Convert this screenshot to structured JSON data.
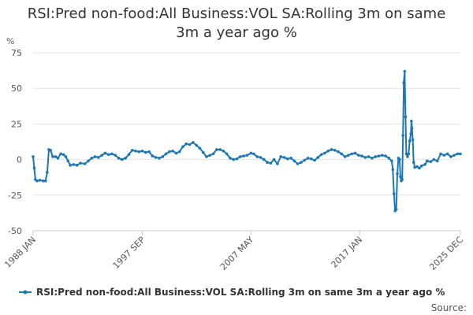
{
  "chart_data": {
    "type": "line",
    "title_lines": [
      "RSI:Pred non-food:All Business:VOL SA:Rolling 3m on same",
      "3m a year ago %"
    ],
    "ylabel": "%",
    "ylim": [
      -50,
      75
    ],
    "yticks": [
      75,
      50,
      25,
      0,
      -25,
      -50
    ],
    "xlim": [
      1988.0,
      2025.95
    ],
    "xticks": [
      {
        "label": "1988 JAN",
        "value": 1988.0
      },
      {
        "label": "1997 SEP",
        "value": 1997.7
      },
      {
        "label": "2007 MAY",
        "value": 2007.35
      },
      {
        "label": "2017 JAN",
        "value": 2017.0
      },
      {
        "label": "2025 DEC",
        "value": 2025.95
      }
    ],
    "grid": true,
    "legend_position": "bottom",
    "series": [
      {
        "name": "RSI:Pred non-food:All Business:VOL SA:Rolling 3m on same 3m a year ago %",
        "color": "#1c77b4",
        "points": [
          [
            1988.0,
            2
          ],
          [
            1988.1,
            -6
          ],
          [
            1988.2,
            -14
          ],
          [
            1988.35,
            -15
          ],
          [
            1988.6,
            -14.5
          ],
          [
            1988.9,
            -15
          ],
          [
            1989.1,
            -15
          ],
          [
            1989.25,
            -9
          ],
          [
            1989.4,
            7
          ],
          [
            1989.55,
            6.5
          ],
          [
            1989.75,
            2
          ],
          [
            1990.0,
            2
          ],
          [
            1990.2,
            1
          ],
          [
            1990.45,
            4
          ],
          [
            1990.7,
            3.5
          ],
          [
            1990.9,
            2
          ],
          [
            1991.1,
            -1
          ],
          [
            1991.3,
            -4
          ],
          [
            1991.6,
            -3.5
          ],
          [
            1991.9,
            -4
          ],
          [
            1992.2,
            -2.5
          ],
          [
            1992.6,
            -3
          ],
          [
            1992.9,
            -1
          ],
          [
            1993.2,
            1
          ],
          [
            1993.5,
            2
          ],
          [
            1993.8,
            1.5
          ],
          [
            1994.1,
            3
          ],
          [
            1994.4,
            4.5
          ],
          [
            1994.7,
            3.5
          ],
          [
            1995.0,
            4
          ],
          [
            1995.3,
            3
          ],
          [
            1995.6,
            1
          ],
          [
            1995.9,
            0
          ],
          [
            1996.2,
            1
          ],
          [
            1996.5,
            3.5
          ],
          [
            1996.8,
            6.5
          ],
          [
            1997.1,
            6
          ],
          [
            1997.4,
            5.5
          ],
          [
            1997.7,
            6
          ],
          [
            1998.0,
            5
          ],
          [
            1998.3,
            5.5
          ],
          [
            1998.6,
            2.5
          ],
          [
            1998.9,
            1.5
          ],
          [
            1999.2,
            1
          ],
          [
            1999.5,
            2
          ],
          [
            1999.8,
            4
          ],
          [
            2000.1,
            5.5
          ],
          [
            2000.4,
            6
          ],
          [
            2000.7,
            4.5
          ],
          [
            2001.0,
            5.5
          ],
          [
            2001.3,
            9
          ],
          [
            2001.6,
            11
          ],
          [
            2001.9,
            10.5
          ],
          [
            2002.2,
            12
          ],
          [
            2002.5,
            10
          ],
          [
            2002.8,
            8
          ],
          [
            2003.1,
            5
          ],
          [
            2003.4,
            2
          ],
          [
            2003.7,
            3
          ],
          [
            2004.0,
            4
          ],
          [
            2004.3,
            7
          ],
          [
            2004.6,
            7
          ],
          [
            2004.9,
            6
          ],
          [
            2005.2,
            4
          ],
          [
            2005.5,
            1
          ],
          [
            2005.8,
            0
          ],
          [
            2006.1,
            0.5
          ],
          [
            2006.4,
            2
          ],
          [
            2006.7,
            2.5
          ],
          [
            2007.0,
            3
          ],
          [
            2007.35,
            4.5
          ],
          [
            2007.6,
            4
          ],
          [
            2007.9,
            2
          ],
          [
            2008.2,
            1.5
          ],
          [
            2008.5,
            0
          ],
          [
            2008.8,
            -2
          ],
          [
            2009.1,
            -2.5
          ],
          [
            2009.4,
            0
          ],
          [
            2009.7,
            -3
          ],
          [
            2010.0,
            2
          ],
          [
            2010.3,
            1.5
          ],
          [
            2010.6,
            0.5
          ],
          [
            2010.9,
            1
          ],
          [
            2011.2,
            -1
          ],
          [
            2011.5,
            -3
          ],
          [
            2011.8,
            -2
          ],
          [
            2012.1,
            -0.5
          ],
          [
            2012.4,
            1
          ],
          [
            2012.7,
            0.5
          ],
          [
            2013.0,
            -0.5
          ],
          [
            2013.3,
            1.5
          ],
          [
            2013.6,
            3.5
          ],
          [
            2013.9,
            4.5
          ],
          [
            2014.2,
            6
          ],
          [
            2014.5,
            7
          ],
          [
            2014.8,
            6.5
          ],
          [
            2015.1,
            5.5
          ],
          [
            2015.4,
            4
          ],
          [
            2015.7,
            2
          ],
          [
            2016.0,
            3
          ],
          [
            2016.3,
            4
          ],
          [
            2016.6,
            4.5
          ],
          [
            2016.9,
            3
          ],
          [
            2017.2,
            2.5
          ],
          [
            2017.5,
            1.5
          ],
          [
            2017.8,
            2
          ],
          [
            2018.1,
            1
          ],
          [
            2018.4,
            2
          ],
          [
            2018.7,
            2.5
          ],
          [
            2019.0,
            3
          ],
          [
            2019.3,
            2.5
          ],
          [
            2019.6,
            1
          ],
          [
            2019.85,
            -1
          ],
          [
            2019.95,
            -7
          ],
          [
            2020.05,
            -24
          ],
          [
            2020.15,
            -36
          ],
          [
            2020.25,
            -35
          ],
          [
            2020.35,
            -10
          ],
          [
            2020.45,
            1
          ],
          [
            2020.55,
            0
          ],
          [
            2020.62,
            -12
          ],
          [
            2020.7,
            -15
          ],
          [
            2020.78,
            -14
          ],
          [
            2020.85,
            17
          ],
          [
            2020.92,
            54
          ],
          [
            2021.0,
            62
          ],
          [
            2021.08,
            30
          ],
          [
            2021.15,
            4
          ],
          [
            2021.25,
            2
          ],
          [
            2021.35,
            4
          ],
          [
            2021.45,
            13
          ],
          [
            2021.55,
            18
          ],
          [
            2021.6,
            27
          ],
          [
            2021.65,
            22
          ],
          [
            2021.72,
            14
          ],
          [
            2021.8,
            -2
          ],
          [
            2021.9,
            -5.5
          ],
          [
            2022.1,
            -5
          ],
          [
            2022.3,
            -6
          ],
          [
            2022.5,
            -4.5
          ],
          [
            2022.8,
            -3.5
          ],
          [
            2023.0,
            -1
          ],
          [
            2023.3,
            -1.5
          ],
          [
            2023.6,
            0
          ],
          [
            2023.9,
            -1
          ],
          [
            2024.2,
            4
          ],
          [
            2024.5,
            3
          ],
          [
            2024.8,
            4
          ],
          [
            2025.1,
            2
          ],
          [
            2025.4,
            3
          ],
          [
            2025.7,
            4
          ],
          [
            2025.95,
            4
          ]
        ]
      }
    ],
    "source": "Source:"
  }
}
